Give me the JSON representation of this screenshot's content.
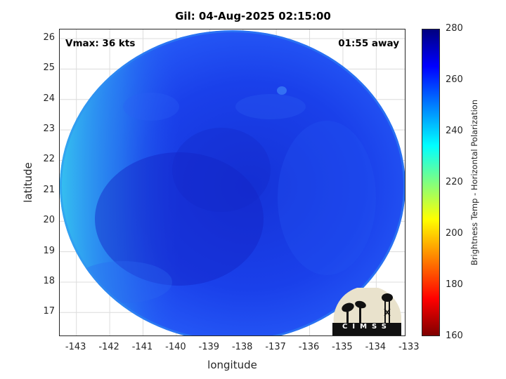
{
  "title": "Gil: 04-Aug-2025 02:15:00",
  "vmax_text": "Vmax: 36 kts",
  "time_text": "01:55 away",
  "axes": {
    "xlabel": "longitude",
    "ylabel": "latitude",
    "xticks": [
      "-143",
      "-142",
      "-141",
      "-140",
      "-139",
      "-138",
      "-137",
      "-136",
      "-135",
      "-134",
      "-133"
    ],
    "yticks": [
      "26",
      "25",
      "24",
      "23",
      "22",
      "21",
      "20",
      "19",
      "18",
      "17"
    ],
    "xlim": [
      -143.5,
      -133.1
    ],
    "ylim": [
      16.2,
      26.3
    ]
  },
  "colorbar": {
    "label": "Brightness Temp - Horizontal Polarization",
    "ticks": [
      "280",
      "260",
      "240",
      "220",
      "200",
      "180",
      "160"
    ],
    "range": [
      160,
      280
    ],
    "colormap": "jet"
  },
  "logo": {
    "text": "CIMSS"
  },
  "colors": {
    "deep": "#1a2fd6",
    "mid": "#1f45ee",
    "edge": "#2a9af0"
  }
}
